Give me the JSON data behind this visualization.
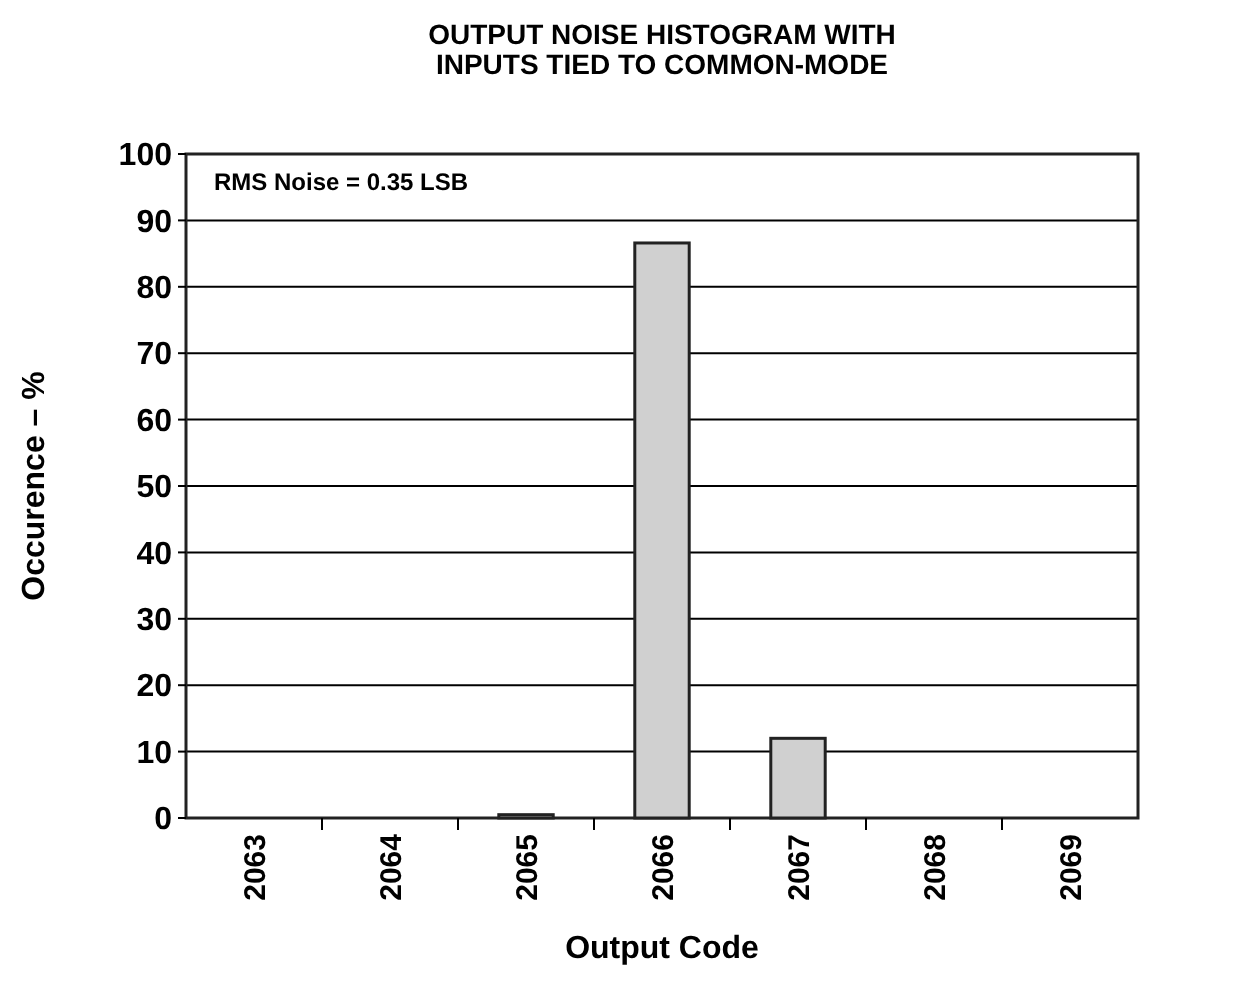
{
  "chart_data": {
    "type": "bar",
    "title": "OUTPUT NOISE HISTOGRAM WITH\nINPUTS TIED TO COMMON-MODE",
    "xlabel": "Output Code",
    "ylabel": "Occurence – %",
    "categories": [
      "2063",
      "2064",
      "2065",
      "2066",
      "2067",
      "2068",
      "2069"
    ],
    "values": [
      0,
      0,
      0.5,
      86.6,
      12,
      0,
      0
    ],
    "color": "#d0d0d0",
    "ylim": [
      0,
      100
    ],
    "yticks": [
      0,
      10,
      20,
      30,
      40,
      50,
      60,
      70,
      80,
      90,
      100
    ],
    "grid": "y",
    "annotations": [
      "RMS Noise = 0.35 LSB"
    ]
  }
}
